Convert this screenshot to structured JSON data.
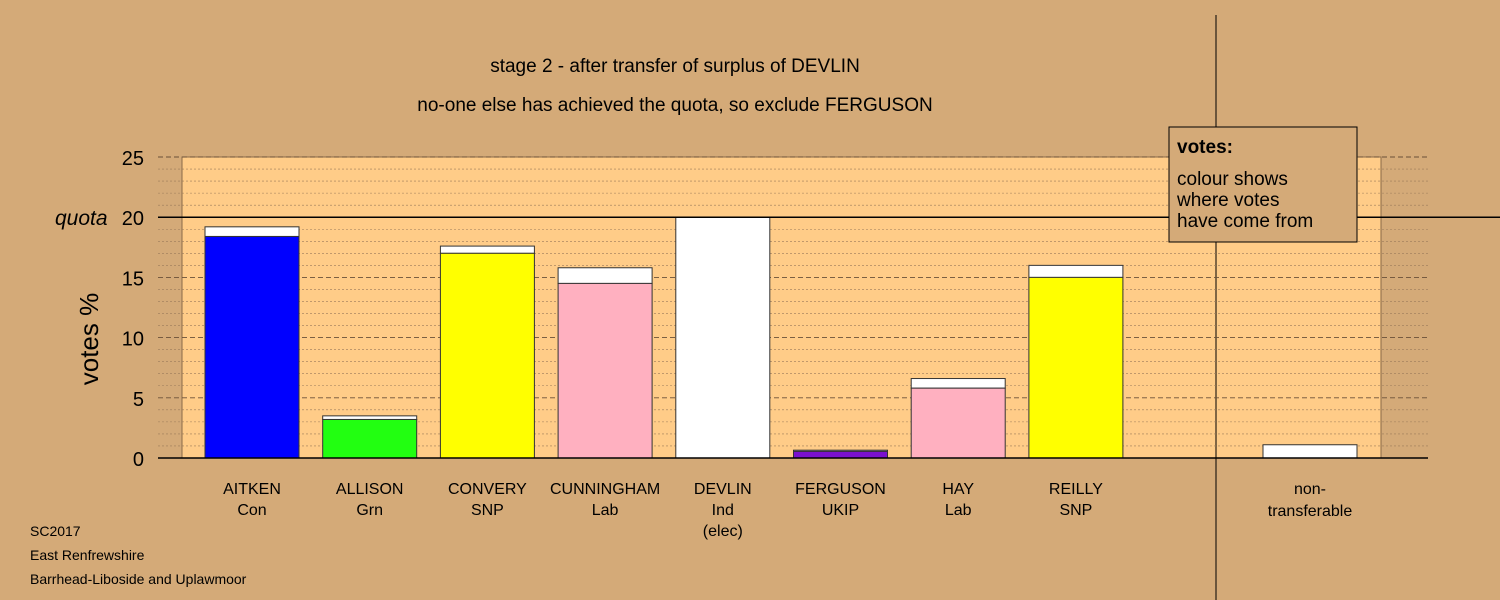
{
  "chart_data": {
    "type": "bar",
    "title": "stage 2 - after transfer of surplus of DEVLIN",
    "subtitle": "no-one else has achieved the quota, so exclude FERGUSON",
    "ylabel": "votes %",
    "ylim": [
      0,
      25
    ],
    "yticks": [
      "0",
      "5",
      "10",
      "15",
      "20",
      "25"
    ],
    "quota_label": "quota",
    "quota": 20,
    "candidates": [
      {
        "name": "AITKEN",
        "party": "Con",
        "extra": "",
        "base": 18.4,
        "total": 19.2,
        "color": "#0000ff"
      },
      {
        "name": "ALLISON",
        "party": "Grn",
        "extra": "",
        "base": 3.2,
        "total": 3.5,
        "color": "#22ff11"
      },
      {
        "name": "CONVERY",
        "party": "SNP",
        "extra": "",
        "base": 17.0,
        "total": 17.6,
        "color": "#ffff00"
      },
      {
        "name": "CUNNINGHAM",
        "party": "Lab",
        "extra": "",
        "base": 14.5,
        "total": 15.8,
        "color": "#ffb0c0"
      },
      {
        "name": "DEVLIN",
        "party": "Ind",
        "extra": "(elec)",
        "base": 20.0,
        "total": 20.0,
        "color": "#ffffff"
      },
      {
        "name": "FERGUSON",
        "party": "UKIP",
        "extra": "",
        "base": 0.55,
        "total": 0.65,
        "color": "#7a10d0"
      },
      {
        "name": "HAY",
        "party": "Lab",
        "extra": "",
        "base": 5.8,
        "total": 6.6,
        "color": "#ffb0c0"
      },
      {
        "name": "REILLY",
        "party": "SNP",
        "extra": "",
        "base": 15.0,
        "total": 16.0,
        "color": "#ffff00"
      }
    ],
    "nontransferable": {
      "line1": "non-",
      "line2": "transferable",
      "value": 1.1,
      "color": "#ffffff"
    },
    "legend": {
      "title": "votes:",
      "lines": [
        "colour shows",
        "where votes",
        "have come from"
      ]
    }
  },
  "footer": {
    "line1": "SC2017",
    "line2": "East Renfrewshire",
    "line3": "Barrhead-Liboside and Uplawmoor"
  }
}
